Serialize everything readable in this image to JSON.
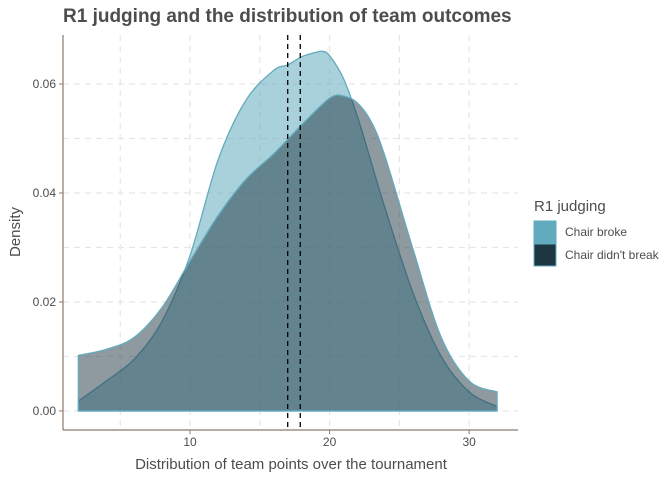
{
  "chart_data": {
    "type": "area",
    "title": "R1 judging and the distribution of team outcomes",
    "xlabel": "Distribution of team points over the tournament",
    "ylabel": "Density",
    "xlim": [
      0.9,
      33.5
    ],
    "ylim": [
      -0.0035,
      0.069
    ],
    "x_ticks": [
      10,
      20,
      30
    ],
    "y_ticks": [
      0.0,
      0.02,
      0.04,
      0.06
    ],
    "y_tick_labels": [
      "0.00",
      "0.02",
      "0.04",
      "0.06"
    ],
    "grid": true,
    "legend": {
      "title": "R1 judging",
      "placement": "right",
      "entries": [
        "Chair broke",
        "Chair didn't break"
      ]
    },
    "series": [
      {
        "name": "Chair broke",
        "color": "#62abbe",
        "x": [
          2,
          4,
          6,
          8,
          10,
          12,
          14,
          16,
          17,
          18,
          19,
          19.5,
          20,
          21,
          22,
          23,
          24,
          26,
          28,
          30,
          32
        ],
        "y": [
          0.0018,
          0.0055,
          0.0095,
          0.0165,
          0.0285,
          0.046,
          0.057,
          0.0625,
          0.0635,
          0.065,
          0.0658,
          0.066,
          0.0652,
          0.061,
          0.054,
          0.0455,
          0.037,
          0.0215,
          0.01,
          0.0035,
          0.0008
        ]
      },
      {
        "name": "Chair didn't break",
        "color": "#1e3542",
        "x": [
          2,
          4,
          6,
          8,
          10,
          12,
          14,
          16,
          18,
          20,
          21,
          22,
          23,
          24,
          26,
          28,
          30,
          32
        ],
        "y": [
          0.0102,
          0.0113,
          0.0135,
          0.019,
          0.0275,
          0.0358,
          0.0425,
          0.0472,
          0.0525,
          0.0574,
          0.0578,
          0.0565,
          0.053,
          0.0465,
          0.0295,
          0.0135,
          0.0055,
          0.0035
        ]
      }
    ],
    "vlines": [
      17.0,
      17.9
    ]
  }
}
